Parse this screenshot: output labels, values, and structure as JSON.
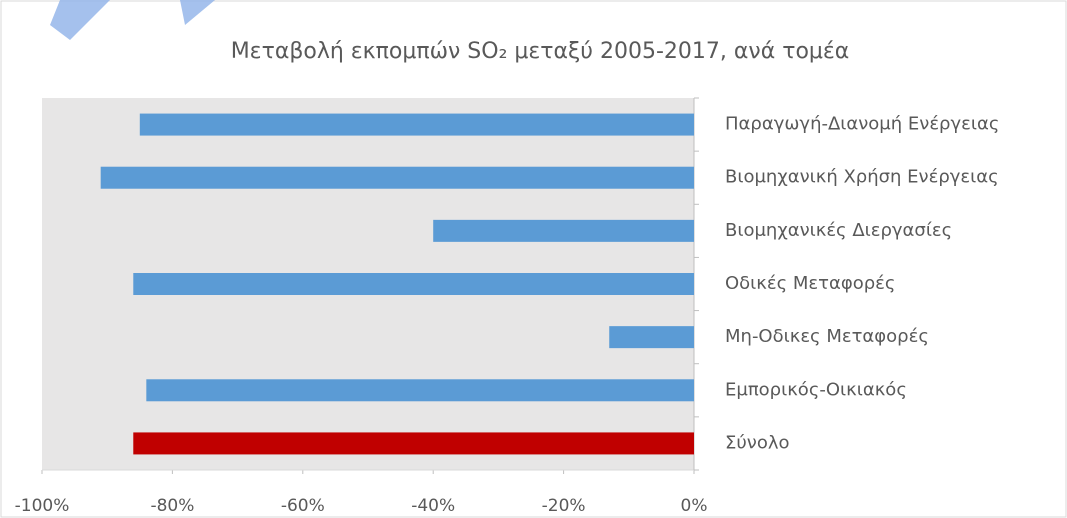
{
  "chart_data": {
    "type": "hbar",
    "title": "Μεταβολή εκπομπών SO₂ μεταξύ 2005-2017, ανά τομέα",
    "categories": [
      "Παραγωγή-Διανομή Ενέργειας",
      "Βιομηχανική Χρήση Ενέργειας",
      "Βιομηχανικές Διεργασίες",
      "Οδικές Μεταφορές",
      "Μη-Οδικες Μεταφορές",
      "Εμπορικός-Οικιακός",
      "Σύνολο"
    ],
    "values": [
      -85,
      -91,
      -40,
      -86,
      -13,
      -84,
      -86
    ],
    "colors": [
      "#5b9bd5",
      "#5b9bd5",
      "#5b9bd5",
      "#5b9bd5",
      "#5b9bd5",
      "#5b9bd5",
      "#c00000"
    ],
    "xlim": [
      -100,
      0
    ],
    "xticks": [
      {
        "value": -100,
        "label": "-100%"
      },
      {
        "value": -80,
        "label": "-80%"
      },
      {
        "value": -60,
        "label": "-60%"
      },
      {
        "value": -40,
        "label": "-40%"
      },
      {
        "value": -20,
        "label": "-20%"
      },
      {
        "value": 0,
        "label": "0%"
      }
    ],
    "plot_background": "#e7e6e6"
  }
}
